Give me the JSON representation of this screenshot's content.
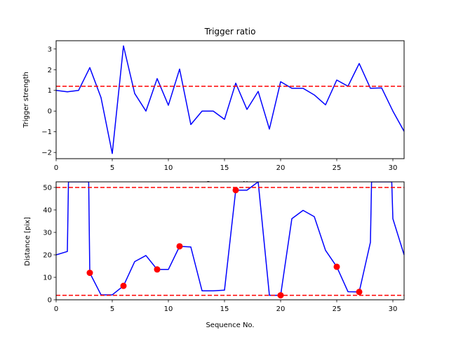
{
  "chart_data": [
    {
      "type": "line",
      "title": "Trigger ratio",
      "xlabel": "Sequence No.",
      "ylabel": "Trigger strength",
      "xlim": [
        0,
        31
      ],
      "ylim": [
        -2.3,
        3.4
      ],
      "xticks": [
        0,
        5,
        10,
        15,
        20,
        25,
        30
      ],
      "yticks": [
        -2,
        -1,
        0,
        1,
        2,
        3
      ],
      "ytick_labels": [
        "−2",
        "−1",
        "0",
        "1",
        "2",
        "3"
      ],
      "grid": false,
      "series": [
        {
          "color": "#0000ff",
          "x": [
            0,
            1,
            2,
            3,
            4,
            5,
            6,
            7,
            8,
            9,
            10,
            11,
            12,
            13,
            14,
            15,
            16,
            17,
            18,
            19,
            20,
            21,
            22,
            23,
            24,
            25,
            26,
            27,
            28,
            29,
            30,
            31
          ],
          "y": [
            1.0,
            0.93,
            1.0,
            2.1,
            0.65,
            -2.05,
            3.15,
            0.85,
            0.0,
            1.57,
            0.28,
            2.03,
            -0.65,
            0.0,
            0.0,
            -0.4,
            1.35,
            0.08,
            0.95,
            -0.87,
            1.42,
            1.1,
            1.1,
            0.78,
            0.3,
            1.5,
            1.2,
            2.3,
            1.1,
            1.12,
            0.0,
            -0.98
          ]
        }
      ],
      "hlines": [
        {
          "y": 1.2,
          "color": "#ff0000",
          "style": "dashed"
        }
      ]
    },
    {
      "type": "line",
      "title": "",
      "xlabel": "Sequence No.",
      "ylabel": "Distance [pix]",
      "xlim": [
        0,
        31
      ],
      "ylim": [
        0,
        52.5
      ],
      "xticks": [
        0,
        5,
        10,
        15,
        20,
        25,
        30
      ],
      "yticks": [
        0,
        10,
        20,
        30,
        40,
        50
      ],
      "ytick_labels": [
        "0",
        "10",
        "20",
        "30",
        "40",
        "50"
      ],
      "grid": false,
      "series": [
        {
          "color": "#0000ff",
          "x": [
            0,
            1,
            1.1,
            2.9,
            3,
            4,
            5,
            6,
            7,
            8,
            9,
            10,
            11,
            12,
            13,
            14,
            15,
            16,
            17,
            18,
            19,
            20,
            21,
            22,
            23,
            24,
            25,
            26,
            27,
            28,
            28.1,
            29.9,
            30,
            31
          ],
          "y": [
            20,
            21.5,
            52.5,
            52.5,
            12,
            2.2,
            2.2,
            6.2,
            17,
            19.7,
            13.5,
            13.5,
            23.8,
            23.5,
            4,
            4,
            4.3,
            48.8,
            48.8,
            52.5,
            2,
            2,
            36.1,
            39.8,
            37,
            22,
            14.7,
            3.6,
            3.5,
            25.6,
            52.5,
            52.5,
            36.1,
            20
          ]
        }
      ],
      "markers": {
        "color": "#ff0000",
        "x": [
          3,
          6,
          9,
          11,
          16,
          20,
          25,
          27
        ],
        "y": [
          12,
          6.2,
          13.5,
          23.8,
          48.8,
          2,
          14.7,
          3.5
        ]
      },
      "hlines": [
        {
          "y": 50,
          "color": "#ff0000",
          "style": "dashed"
        },
        {
          "y": 2,
          "color": "#ff0000",
          "style": "dashed"
        }
      ]
    }
  ]
}
